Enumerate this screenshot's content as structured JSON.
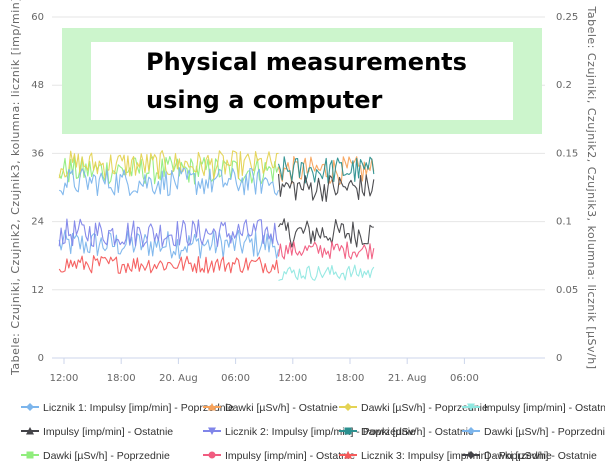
{
  "chart_data": {
    "type": "line",
    "title": "",
    "banner": {
      "line1": "Physical measurements",
      "line2": "using a computer",
      "color": "#ccf5cc"
    },
    "y_left": {
      "label": "Tabele: Czujniki, Czujnik2, Czujnik3, kolumna: licznik [imp/min]",
      "min": 0,
      "max": 60,
      "ticks": [
        "0",
        "12",
        "24",
        "36",
        "48",
        "60"
      ]
    },
    "y_right": {
      "label": "Tabele: Czujniki, Czujnik2, Czujnik3, kolumna: licznik [µSv/h]",
      "min": 0,
      "max": 0.25,
      "ticks": [
        "0",
        "0.05",
        "0.1",
        "0.15",
        "0.2",
        "0.25"
      ]
    },
    "x": {
      "start_hour": 11.5,
      "end_hour": 44.5,
      "ticks": [
        {
          "h": 12,
          "label": "12:00"
        },
        {
          "h": 18,
          "label": "18:00"
        },
        {
          "h": 24,
          "label": "20. Aug"
        },
        {
          "h": 30,
          "label": "06:00"
        },
        {
          "h": 36,
          "label": "12:00"
        },
        {
          "h": 42,
          "label": "18:00"
        },
        {
          "h": 48,
          "label": "21. Aug"
        },
        {
          "h": 54,
          "label": "06:00"
        }
      ],
      "hours_per_tick": 6
    },
    "grid": true,
    "legend_position": "bottom",
    "series": [
      {
        "name": "Licznik 1: Impulsy [imp/min] - Poprzednie",
        "color": "#7cb5ec",
        "marker": "diamond",
        "period": "previous",
        "mean": 20,
        "amp": 2.5
      },
      {
        "name": "Impulsy [imp/min] - Ostatnie",
        "color": "#434348",
        "marker": "triangle",
        "period": "last",
        "mean": 22,
        "amp": 2.5
      },
      {
        "name": "Dawki [µSv/h] - Poprzednie",
        "color": "#90ed7d",
        "marker": "square",
        "period": "previous",
        "mean": 33,
        "amp": 2.5
      },
      {
        "name": "Dawki [µSv/h] - Ostatnie",
        "color": "#f7a35c",
        "marker": "triangle",
        "period": "last",
        "mean": 33,
        "amp": 2.5
      },
      {
        "name": "Licznik 2: Impulsy [imp/min] - Poprzednie",
        "color": "#8085e9",
        "marker": "triangle-down",
        "period": "previous",
        "mean": 22,
        "amp": 2.5
      },
      {
        "name": "Impulsy [imp/min] - Ostatnie",
        "color": "#f15c80",
        "marker": "circle",
        "period": "last",
        "mean": 19,
        "amp": 1.6
      },
      {
        "name": "Dawki [µSv/h] - Poprzednie",
        "color": "#e4d354",
        "marker": "diamond",
        "period": "previous",
        "mean": 34,
        "amp": 2.5
      },
      {
        "name": "Dawki [µSv/h] - Ostatnie",
        "color": "#2b908f",
        "marker": "square",
        "period": "last",
        "mean": 33,
        "amp": 2.5
      },
      {
        "name": "Licznik 3: Impulsy [imp/min] - Poprzednie",
        "color": "#f45b5b",
        "marker": "triangle",
        "period": "previous",
        "mean": 16.5,
        "amp": 1.6
      },
      {
        "name": "Impulsy [imp/min] - Ostatnie",
        "color": "#91e8e1",
        "marker": "triangle-down",
        "period": "last",
        "mean": 15,
        "amp": 1.4
      },
      {
        "name": "Dawki [µSv/h] - Poprzednie",
        "color": "#7cb5ec",
        "marker": "diamond",
        "period": "previous",
        "mean": 31,
        "amp": 2.5
      },
      {
        "name": "Dawki [µSv/h] - Ostatnie",
        "color": "#434348",
        "marker": "diamond",
        "period": "last",
        "mean": 30,
        "amp": 2.5
      }
    ]
  }
}
